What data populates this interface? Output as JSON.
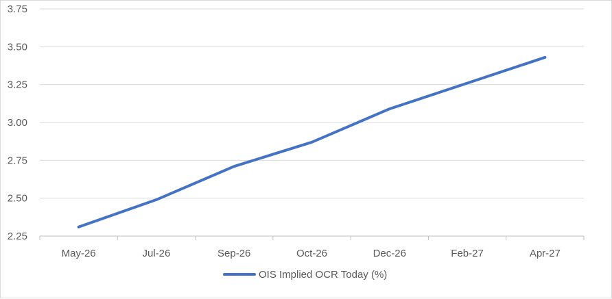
{
  "chart_data": {
    "type": "line",
    "title": "",
    "xlabel": "",
    "ylabel": "",
    "categories": [
      "May-26",
      "Jul-26",
      "Sep-26",
      "Oct-26",
      "Dec-26",
      "Feb-27",
      "Apr-27"
    ],
    "series": [
      {
        "name": "OIS Implied OCR Today (%)",
        "values": [
          2.31,
          2.49,
          2.71,
          2.87,
          3.09,
          3.26,
          3.43
        ],
        "color": "#4472c4"
      }
    ],
    "ylim": [
      2.25,
      3.75
    ],
    "yticks": [
      "2.25",
      "2.50",
      "2.75",
      "3.00",
      "3.25",
      "3.50",
      "3.75"
    ],
    "grid": true,
    "legend": "bottom",
    "grid_color": "#d9d9d9",
    "axis_color": "#bfbfbf",
    "text_color": "#595959"
  }
}
